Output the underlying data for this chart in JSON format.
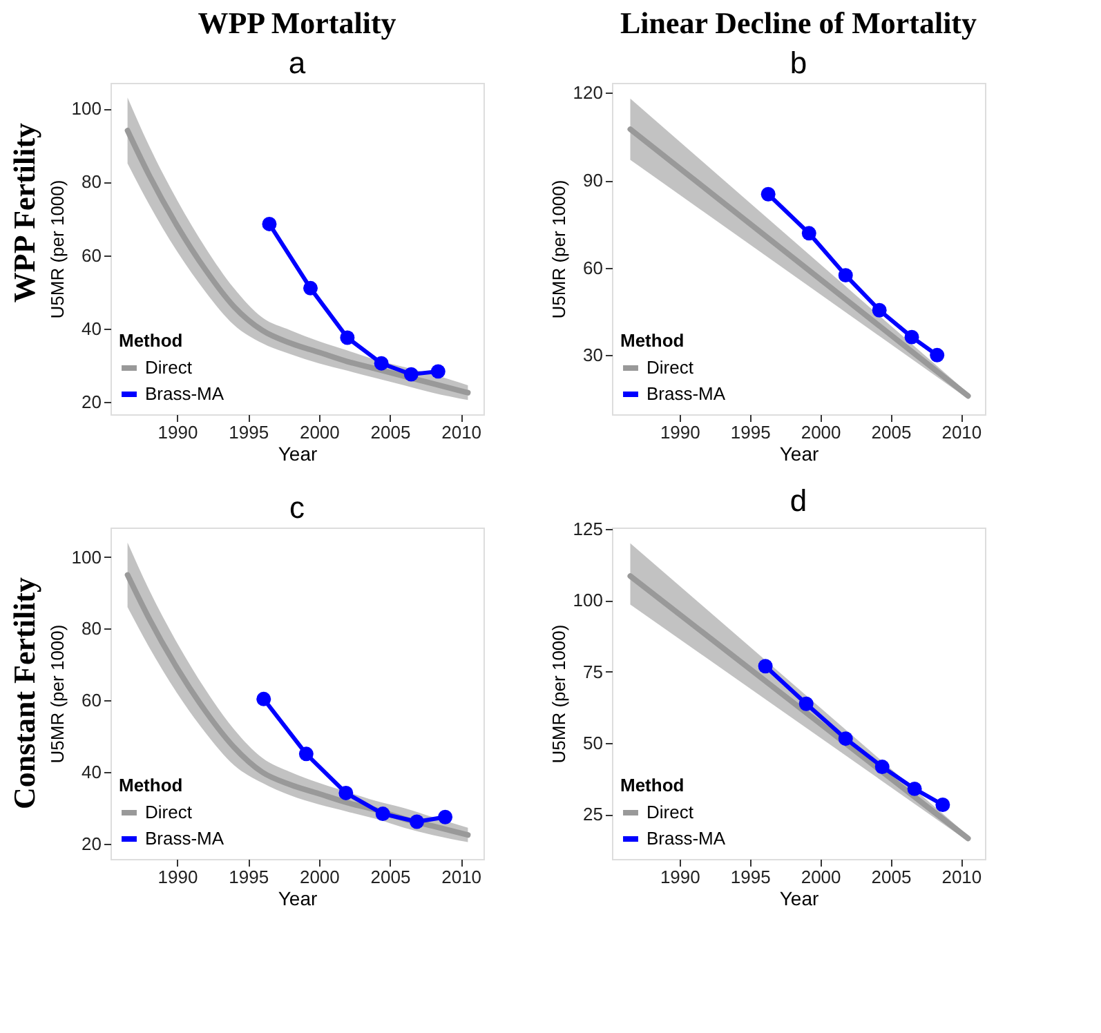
{
  "chart_data": [
    {
      "type": "line",
      "title": "a",
      "xlabel": "Year",
      "ylabel": "U5MR (per 1000)",
      "legend_title": "Method",
      "legend": "bottom left",
      "grid": false,
      "line_style": "solid",
      "annotations": [
        "WPP Mortality",
        "WPP Fertility"
      ],
      "xlim": [
        1985.3,
        2011.6
      ],
      "xticks": [
        1990,
        1995,
        2000,
        2005,
        2010
      ],
      "ylim": [
        16.6,
        107
      ],
      "yticks": [
        20,
        40,
        60,
        80,
        100
      ],
      "series": [
        {
          "name": "Direct",
          "marker": "none",
          "color": "#999999",
          "x": [
            1986.5,
            1988,
            1990,
            1992,
            1994,
            1996,
            1998,
            2000,
            2002,
            2004,
            2006,
            2008,
            2010.5
          ],
          "values": [
            94,
            82,
            68,
            56,
            46,
            39.5,
            36,
            33.5,
            31,
            29,
            27,
            25,
            22.5
          ],
          "lower": [
            85,
            74,
            61,
            50,
            41,
            36,
            33,
            30.5,
            28.5,
            26.5,
            24.5,
            22.5,
            20.5
          ],
          "upper": [
            103,
            90,
            75,
            62,
            51,
            43,
            39.5,
            36.5,
            34,
            31.5,
            29.5,
            27.5,
            24.5
          ]
        },
        {
          "name": "Brass-MA",
          "marker": "circle",
          "color": "#0000ff",
          "x": [
            1996.5,
            1999.4,
            2002.0,
            2004.4,
            2006.5,
            2008.4
          ],
          "values": [
            68.5,
            51,
            37.5,
            30.5,
            27.5,
            28.3
          ]
        }
      ]
    },
    {
      "type": "line",
      "title": "b",
      "xlabel": "Year",
      "ylabel": "U5MR (per 1000)",
      "legend_title": "Method",
      "legend": "bottom left",
      "grid": false,
      "line_style": "solid",
      "annotations": [
        "Linear Decline of Mortality"
      ],
      "xlim": [
        1985.2,
        2011.7
      ],
      "xticks": [
        1990,
        1995,
        2000,
        2005,
        2010
      ],
      "ylim": [
        9.7,
        123.4
      ],
      "yticks": [
        30,
        60,
        90,
        120
      ],
      "series": [
        {
          "name": "Direct",
          "marker": "none",
          "color": "#999999",
          "x": [
            1986.5,
            2010.5
          ],
          "values": [
            107.5,
            16
          ],
          "lower": [
            97,
            15
          ],
          "upper": [
            118,
            17
          ]
        },
        {
          "name": "Brass-MA",
          "marker": "circle",
          "color": "#0000ff",
          "x": [
            1996.3,
            1999.2,
            2001.8,
            2004.2,
            2006.5,
            2008.3
          ],
          "values": [
            85.2,
            71.8,
            57.4,
            45.4,
            36.2,
            30
          ]
        }
      ]
    },
    {
      "type": "line",
      "title": "c",
      "xlabel": "Year",
      "ylabel": "U5MR (per 1000)",
      "legend_title": "Method",
      "legend": "bottom left",
      "grid": false,
      "line_style": "solid",
      "annotations": [
        "Constant Fertility"
      ],
      "xlim": [
        1985.3,
        2011.6
      ],
      "xticks": [
        1990,
        1995,
        2000,
        2005,
        2010
      ],
      "ylim": [
        15.8,
        108.2
      ],
      "yticks": [
        20,
        40,
        60,
        80,
        100
      ],
      "series": [
        {
          "name": "Direct",
          "marker": "none",
          "color": "#999999",
          "x": [
            1986.5,
            1988,
            1990,
            1992,
            1994,
            1996,
            1998,
            2000,
            2002,
            2004,
            2006,
            2008,
            2010.5
          ],
          "values": [
            95,
            83,
            69,
            57,
            47,
            40,
            36.5,
            34,
            31.5,
            29.5,
            27,
            25,
            22.5
          ],
          "lower": [
            86,
            75,
            62,
            51,
            42,
            37,
            33.5,
            31,
            29,
            27,
            24.5,
            22.5,
            20.5
          ],
          "upper": [
            104,
            91,
            76,
            63,
            52,
            44,
            40,
            37,
            34.5,
            32,
            30,
            27.5,
            24.5
          ]
        },
        {
          "name": "Brass-MA",
          "marker": "circle",
          "color": "#0000ff",
          "x": [
            1996.1,
            1999.1,
            2001.9,
            2004.5,
            2006.9,
            2008.9
          ],
          "values": [
            60.4,
            45.1,
            34.2,
            28.4,
            26.2,
            27.5
          ]
        }
      ]
    },
    {
      "type": "line",
      "title": "d",
      "xlabel": "Year",
      "ylabel": "U5MR (per 1000)",
      "legend_title": "Method",
      "legend": "bottom left",
      "grid": false,
      "line_style": "solid",
      "xlim": [
        1985.2,
        2011.7
      ],
      "xticks": [
        1990,
        1995,
        2000,
        2005,
        2010
      ],
      "ylim": [
        9.3,
        125.5
      ],
      "yticks": [
        25,
        50,
        75,
        100,
        125
      ],
      "series": [
        {
          "name": "Direct",
          "marker": "none",
          "color": "#999999",
          "x": [
            1986.5,
            2010.5
          ],
          "values": [
            108.5,
            16.5
          ],
          "lower": [
            98.5,
            15.5
          ],
          "upper": [
            120,
            17.5
          ]
        },
        {
          "name": "Brass-MA",
          "marker": "circle",
          "color": "#0000ff",
          "x": [
            1996.1,
            1999.0,
            2001.8,
            2004.4,
            2006.7,
            2008.7
          ],
          "values": [
            76.9,
            63.7,
            51.5,
            41.6,
            33.9,
            28.3
          ]
        }
      ]
    }
  ]
}
